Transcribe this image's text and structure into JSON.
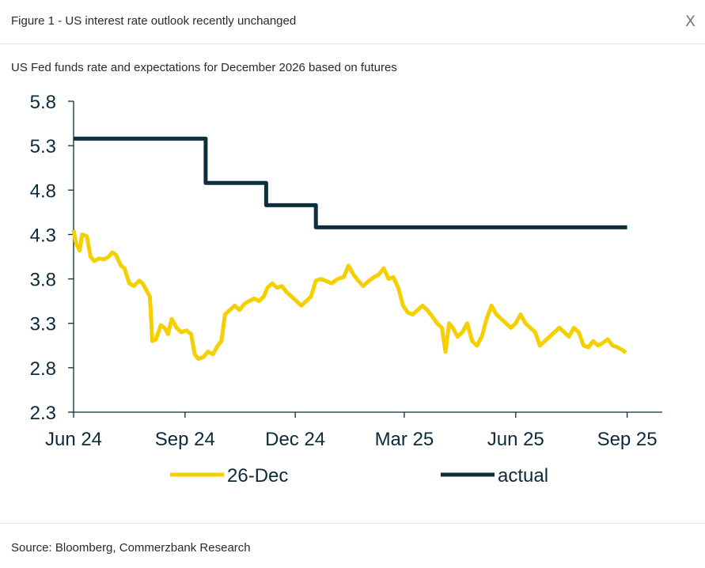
{
  "header": {
    "title": "Figure 1 - US interest rate outlook recently unchanged",
    "close_label": "X"
  },
  "subtitle": "US Fed funds rate and expectations for December 2026 based on futures",
  "footer": {
    "source": "Source: Bloomberg, Commerzbank Research"
  },
  "colors": {
    "dec26": "#f5d000",
    "actual": "#0d2f3c",
    "axis": "#0d2a3a"
  },
  "chart_data": {
    "type": "line",
    "title": "",
    "xlabel": "",
    "ylabel": "",
    "ylim": [
      2.3,
      5.8
    ],
    "yticks": [
      "5.8",
      "5.3",
      "4.8",
      "4.3",
      "3.8",
      "3.3",
      "2.8",
      "2.3"
    ],
    "xlim": [
      "2024-06-01",
      "2025-09-30"
    ],
    "xticks": [
      {
        "label": "Jun 24",
        "date": "2024-06-01"
      },
      {
        "label": "Sep 24",
        "date": "2024-09-01"
      },
      {
        "label": "Dec 24",
        "date": "2024-12-01"
      },
      {
        "label": "Mar 25",
        "date": "2025-03-01"
      },
      {
        "label": "Jun 25",
        "date": "2025-06-01"
      },
      {
        "label": "Sep 25",
        "date": "2025-09-01"
      }
    ],
    "legend_position": "bottom",
    "series": [
      {
        "name": "26-Dec",
        "color": "#f5d000",
        "points": [
          [
            "2024-06-01",
            4.35
          ],
          [
            "2024-06-03",
            4.2
          ],
          [
            "2024-06-06",
            4.12
          ],
          [
            "2024-06-08",
            4.3
          ],
          [
            "2024-06-12",
            4.28
          ],
          [
            "2024-06-15",
            4.05
          ],
          [
            "2024-06-18",
            4.0
          ],
          [
            "2024-06-22",
            4.03
          ],
          [
            "2024-06-26",
            4.02
          ],
          [
            "2024-06-30",
            4.05
          ],
          [
            "2024-07-03",
            4.1
          ],
          [
            "2024-07-06",
            4.07
          ],
          [
            "2024-07-10",
            3.95
          ],
          [
            "2024-07-13",
            3.92
          ],
          [
            "2024-07-17",
            3.75
          ],
          [
            "2024-07-21",
            3.72
          ],
          [
            "2024-07-25",
            3.78
          ],
          [
            "2024-07-28",
            3.75
          ],
          [
            "2024-08-01",
            3.65
          ],
          [
            "2024-08-03",
            3.6
          ],
          [
            "2024-08-05",
            3.1
          ],
          [
            "2024-08-08",
            3.12
          ],
          [
            "2024-08-12",
            3.28
          ],
          [
            "2024-08-15",
            3.25
          ],
          [
            "2024-08-18",
            3.18
          ],
          [
            "2024-08-21",
            3.35
          ],
          [
            "2024-08-25",
            3.25
          ],
          [
            "2024-08-29",
            3.2
          ],
          [
            "2024-09-02",
            3.22
          ],
          [
            "2024-09-06",
            3.18
          ],
          [
            "2024-09-09",
            2.95
          ],
          [
            "2024-09-12",
            2.9
          ],
          [
            "2024-09-16",
            2.92
          ],
          [
            "2024-09-20",
            2.98
          ],
          [
            "2024-09-24",
            2.95
          ],
          [
            "2024-09-28",
            3.05
          ],
          [
            "2024-10-01",
            3.1
          ],
          [
            "2024-10-04",
            3.4
          ],
          [
            "2024-10-08",
            3.45
          ],
          [
            "2024-10-12",
            3.5
          ],
          [
            "2024-10-16",
            3.45
          ],
          [
            "2024-10-20",
            3.52
          ],
          [
            "2024-10-24",
            3.55
          ],
          [
            "2024-10-28",
            3.58
          ],
          [
            "2024-11-01",
            3.55
          ],
          [
            "2024-11-05",
            3.6
          ],
          [
            "2024-11-08",
            3.7
          ],
          [
            "2024-11-12",
            3.75
          ],
          [
            "2024-11-16",
            3.7
          ],
          [
            "2024-11-20",
            3.72
          ],
          [
            "2024-11-24",
            3.65
          ],
          [
            "2024-11-28",
            3.6
          ],
          [
            "2024-12-02",
            3.55
          ],
          [
            "2024-12-06",
            3.5
          ],
          [
            "2024-12-10",
            3.55
          ],
          [
            "2024-12-14",
            3.6
          ],
          [
            "2024-12-18",
            3.78
          ],
          [
            "2024-12-22",
            3.8
          ],
          [
            "2024-12-26",
            3.78
          ],
          [
            "2024-12-31",
            3.75
          ],
          [
            "2025-01-05",
            3.8
          ],
          [
            "2025-01-10",
            3.82
          ],
          [
            "2025-01-14",
            3.95
          ],
          [
            "2025-01-18",
            3.85
          ],
          [
            "2025-01-22",
            3.78
          ],
          [
            "2025-01-26",
            3.72
          ],
          [
            "2025-01-31",
            3.78
          ],
          [
            "2025-02-04",
            3.82
          ],
          [
            "2025-02-08",
            3.85
          ],
          [
            "2025-02-12",
            3.92
          ],
          [
            "2025-02-16",
            3.8
          ],
          [
            "2025-02-20",
            3.82
          ],
          [
            "2025-02-24",
            3.7
          ],
          [
            "2025-02-28",
            3.5
          ],
          [
            "2025-03-04",
            3.42
          ],
          [
            "2025-03-08",
            3.4
          ],
          [
            "2025-03-12",
            3.45
          ],
          [
            "2025-03-16",
            3.5
          ],
          [
            "2025-03-20",
            3.45
          ],
          [
            "2025-03-24",
            3.38
          ],
          [
            "2025-03-28",
            3.3
          ],
          [
            "2025-04-01",
            3.25
          ],
          [
            "2025-04-04",
            2.98
          ],
          [
            "2025-04-07",
            3.3
          ],
          [
            "2025-04-10",
            3.25
          ],
          [
            "2025-04-14",
            3.15
          ],
          [
            "2025-04-18",
            3.2
          ],
          [
            "2025-04-22",
            3.3
          ],
          [
            "2025-04-26",
            3.1
          ],
          [
            "2025-04-30",
            3.05
          ],
          [
            "2025-05-04",
            3.15
          ],
          [
            "2025-05-08",
            3.35
          ],
          [
            "2025-05-12",
            3.5
          ],
          [
            "2025-05-16",
            3.4
          ],
          [
            "2025-05-20",
            3.35
          ],
          [
            "2025-05-24",
            3.3
          ],
          [
            "2025-05-28",
            3.25
          ],
          [
            "2025-06-01",
            3.3
          ],
          [
            "2025-06-05",
            3.4
          ],
          [
            "2025-06-09",
            3.3
          ],
          [
            "2025-06-13",
            3.25
          ],
          [
            "2025-06-17",
            3.2
          ],
          [
            "2025-06-21",
            3.05
          ],
          [
            "2025-06-25",
            3.1
          ],
          [
            "2025-06-29",
            3.15
          ],
          [
            "2025-07-03",
            3.2
          ],
          [
            "2025-07-07",
            3.25
          ],
          [
            "2025-07-11",
            3.2
          ],
          [
            "2025-07-15",
            3.15
          ],
          [
            "2025-07-19",
            3.25
          ],
          [
            "2025-07-23",
            3.2
          ],
          [
            "2025-07-27",
            3.05
          ],
          [
            "2025-07-31",
            3.03
          ],
          [
            "2025-08-04",
            3.1
          ],
          [
            "2025-08-08",
            3.05
          ],
          [
            "2025-08-12",
            3.08
          ],
          [
            "2025-08-16",
            3.12
          ],
          [
            "2025-08-20",
            3.05
          ],
          [
            "2025-08-24",
            3.03
          ],
          [
            "2025-08-28",
            3.0
          ],
          [
            "2025-08-31",
            2.97
          ]
        ]
      },
      {
        "name": "actual",
        "color": "#0d2f3c",
        "step": true,
        "points": [
          [
            "2024-06-01",
            5.38
          ],
          [
            "2024-09-18",
            5.38
          ],
          [
            "2024-09-18",
            4.88
          ],
          [
            "2024-11-07",
            4.88
          ],
          [
            "2024-11-07",
            4.63
          ],
          [
            "2024-12-18",
            4.63
          ],
          [
            "2024-12-18",
            4.38
          ],
          [
            "2025-09-01",
            4.38
          ]
        ]
      }
    ]
  }
}
